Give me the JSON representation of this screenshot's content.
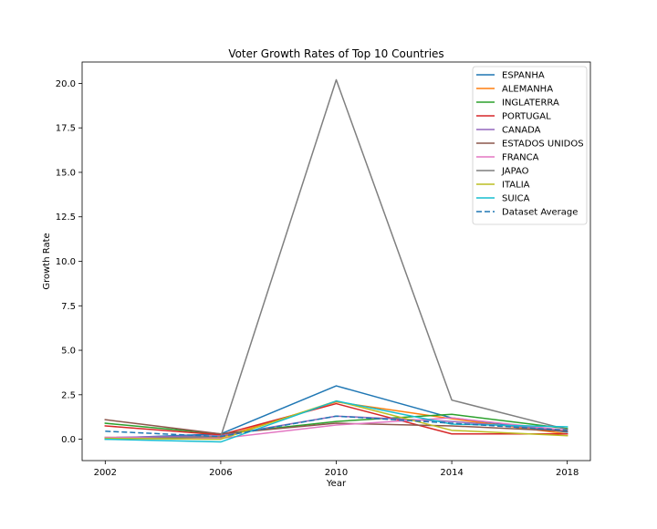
{
  "chart_data": {
    "type": "line",
    "title": "Voter Growth Rates of Top 10 Countries",
    "xlabel": "Year",
    "ylabel": "Growth Rate",
    "x": [
      2002,
      2006,
      2010,
      2014,
      2018
    ],
    "xticks": [
      "2002",
      "2006",
      "2010",
      "2014",
      "2018"
    ],
    "yticks": [
      "0.0",
      "2.5",
      "5.0",
      "7.5",
      "10.0",
      "12.5",
      "15.0",
      "17.5",
      "20.0"
    ],
    "xlim": [
      2001.2,
      2018.8
    ],
    "ylim": [
      -1.2,
      21.2
    ],
    "grid": false,
    "legend_position": "top-right",
    "series": [
      {
        "name": "ESPANHA",
        "color": "#1f77b4",
        "dashed": false,
        "values": [
          0.05,
          0.3,
          3.0,
          1.2,
          0.4
        ]
      },
      {
        "name": "ALEMANHA",
        "color": "#ff7f0e",
        "dashed": false,
        "values": [
          0.1,
          0.1,
          2.1,
          1.15,
          0.3
        ]
      },
      {
        "name": "INGLATERRA",
        "color": "#2ca02c",
        "dashed": false,
        "values": [
          0.9,
          0.3,
          1.0,
          1.4,
          0.6
        ]
      },
      {
        "name": "PORTUGAL",
        "color": "#d62728",
        "dashed": false,
        "values": [
          0.75,
          0.25,
          2.0,
          0.3,
          0.3
        ]
      },
      {
        "name": "CANADA",
        "color": "#9467bd",
        "dashed": false,
        "values": [
          0.1,
          0.2,
          1.3,
          1.0,
          0.5
        ]
      },
      {
        "name": "ESTADOS UNIDOS",
        "color": "#8c564b",
        "dashed": false,
        "values": [
          1.1,
          0.3,
          0.9,
          0.75,
          0.45
        ]
      },
      {
        "name": "FRANCA",
        "color": "#e377c2",
        "dashed": false,
        "values": [
          0.1,
          0.05,
          0.8,
          1.2,
          0.5
        ]
      },
      {
        "name": "JAPAO",
        "color": "#7f7f7f",
        "dashed": false,
        "values": [
          0.0,
          0.15,
          20.2,
          2.2,
          0.55
        ]
      },
      {
        "name": "ITALIA",
        "color": "#bcbd22",
        "dashed": false,
        "values": [
          0.05,
          0.0,
          2.15,
          0.5,
          0.2
        ]
      },
      {
        "name": "SUICA",
        "color": "#17becf",
        "dashed": false,
        "values": [
          0.0,
          -0.15,
          2.15,
          0.85,
          0.7
        ]
      },
      {
        "name": "Dataset Average",
        "color": "#1f77b4",
        "dashed": true,
        "values": [
          0.45,
          0.15,
          1.3,
          0.9,
          0.5
        ]
      }
    ]
  }
}
